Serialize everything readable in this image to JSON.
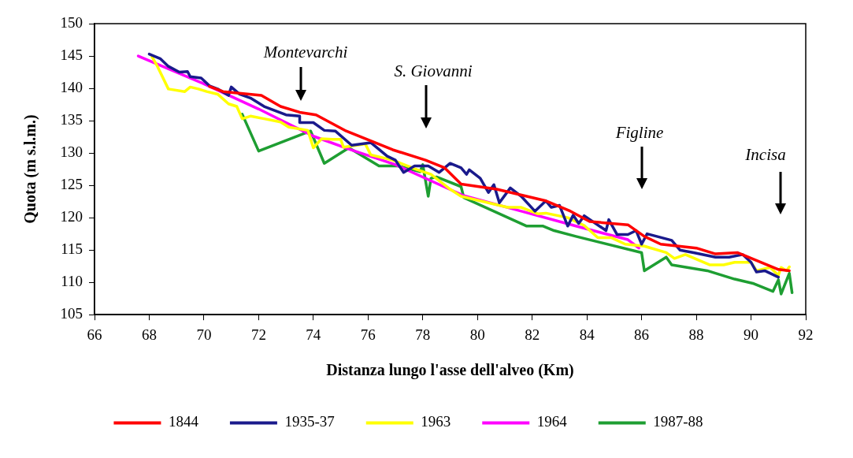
{
  "chart_data": {
    "type": "line",
    "xlabel": "Distanza lungo l'asse dell'alveo (Km)",
    "ylabel": "Quota (m s.l.m.)",
    "xlim": [
      66,
      92
    ],
    "xticks": [
      66,
      68,
      70,
      72,
      74,
      76,
      78,
      80,
      82,
      84,
      86,
      88,
      90,
      92
    ],
    "ylim": [
      105,
      150
    ],
    "yticks": [
      105,
      110,
      115,
      120,
      125,
      130,
      135,
      140,
      145,
      150
    ],
    "grid": false,
    "legend": "bottom",
    "marker": "none",
    "line_style": "solid",
    "annotations": [
      "Montevarchi",
      "S. Giovanni",
      "Figline",
      "Incisa"
    ],
    "series": [
      {
        "name": "1844",
        "color": "#ff0000",
        "x": [
          70.2,
          70.7,
          72.1,
          72.8,
          73.5,
          74.1,
          75.2,
          76.9,
          78.1,
          78.8,
          79.4,
          80.7,
          82.5,
          83.4,
          84.1,
          85.5,
          86.1,
          86.7,
          88.0,
          88.7,
          89.5,
          91.0,
          91.4
        ],
        "values": [
          140.3,
          139.5,
          138.9,
          137.2,
          136.3,
          135.9,
          133.4,
          130.5,
          128.9,
          127.7,
          125.2,
          124.4,
          122.6,
          121.0,
          119.4,
          118.9,
          117.1,
          115.9,
          115.3,
          114.4,
          114.6,
          112.0,
          111.8
        ]
      },
      {
        "name": "1935-37",
        "color": "#1a1a8c",
        "x": [
          68.0,
          68.4,
          68.7,
          69.1,
          69.4,
          69.5,
          69.9,
          70.2,
          70.5,
          70.9,
          71.0,
          71.3,
          71.7,
          72.2,
          73.0,
          73.5,
          73.5,
          74.0,
          74.4,
          74.8,
          75.4,
          76.1,
          76.7,
          77.0,
          77.3,
          77.7,
          78.2,
          78.6,
          79.0,
          79.4,
          79.6,
          79.7,
          80.1,
          80.4,
          80.6,
          80.8,
          81.2,
          81.6,
          82.1,
          82.5,
          82.7,
          83.0,
          83.3,
          83.5,
          83.7,
          83.9,
          84.7,
          84.8,
          85.1,
          85.5,
          85.8,
          86.0,
          86.2,
          87.1,
          87.4,
          87.9,
          88.7,
          89.2,
          89.7,
          90.0,
          90.2,
          90.5,
          91.0
        ],
        "values": [
          145.3,
          144.6,
          143.4,
          142.5,
          142.6,
          141.8,
          141.6,
          140.4,
          139.9,
          138.9,
          140.2,
          139.1,
          138.5,
          137.2,
          135.9,
          135.7,
          134.7,
          134.7,
          133.5,
          133.4,
          131.2,
          131.6,
          129.5,
          128.9,
          127.0,
          128.0,
          128.0,
          127.0,
          128.4,
          127.7,
          126.7,
          127.4,
          126.1,
          123.9,
          125.1,
          122.3,
          124.6,
          123.3,
          121.0,
          122.6,
          121.6,
          121.9,
          118.7,
          120.4,
          119.1,
          120.3,
          118.0,
          119.7,
          117.4,
          117.4,
          118.0,
          115.9,
          117.5,
          116.5,
          115.0,
          114.6,
          113.9,
          113.9,
          114.3,
          113.1,
          111.6,
          111.8,
          110.8
        ]
      },
      {
        "name": "1963",
        "color": "#ffff00",
        "x": [
          68.1,
          68.3,
          68.7,
          69.3,
          69.5,
          69.8,
          70.1,
          70.5,
          70.9,
          71.2,
          71.4,
          71.7,
          72.2,
          72.8,
          73.1,
          73.8,
          74.0,
          74.3,
          74.7,
          75.0,
          75.1,
          75.9,
          76.1,
          76.9,
          77.8,
          78.3,
          79.0,
          79.4,
          81.1,
          81.6,
          82.2,
          82.5,
          83.3,
          83.9,
          84.4,
          84.9,
          85.4,
          86.1,
          86.9,
          87.2,
          87.6,
          88.5,
          89.0,
          89.4,
          90.0,
          90.2,
          90.7,
          91.0,
          91.1,
          91.3,
          91.4
        ],
        "values": [
          144.9,
          143.4,
          139.9,
          139.5,
          140.2,
          139.9,
          139.5,
          139.1,
          137.6,
          137.2,
          135.3,
          135.7,
          135.3,
          134.8,
          134.0,
          133.5,
          130.8,
          132.2,
          132.1,
          132.1,
          130.9,
          131.4,
          129.7,
          128.9,
          127.4,
          126.7,
          124.4,
          123.3,
          121.6,
          121.6,
          120.6,
          120.7,
          120.0,
          118.8,
          116.9,
          116.9,
          115.9,
          115.6,
          114.6,
          113.7,
          114.3,
          112.7,
          112.7,
          113.1,
          113.1,
          111.8,
          112.3,
          111.1,
          112.3,
          111.8,
          112.4
        ]
      },
      {
        "name": "1964",
        "color": "#ff00ff",
        "x": [
          67.6,
          70.0,
          72.0,
          74.0,
          75.3,
          77.0,
          79.5,
          81.6,
          83.6,
          85.5,
          85.9
        ],
        "values": [
          145.0,
          140.7,
          136.8,
          132.6,
          130.6,
          128.2,
          123.4,
          121.0,
          118.7,
          116.6,
          115.3
        ]
      },
      {
        "name": "1987-88",
        "color": "#1e9e32",
        "x": [
          71.4,
          72.0,
          73.9,
          74.4,
          75.3,
          76.4,
          77.1,
          77.9,
          78.0,
          78.2,
          78.3,
          78.5,
          79.4,
          79.5,
          81.8,
          82.4,
          82.8,
          83.6,
          86.0,
          86.1,
          86.9,
          87.1,
          88.4,
          89.4,
          90.1,
          90.8,
          91.0,
          91.1,
          91.4,
          91.5
        ],
        "values": [
          136.0,
          130.3,
          133.4,
          128.4,
          130.8,
          128.0,
          128.0,
          127.1,
          128.2,
          123.3,
          126.1,
          126.3,
          124.8,
          123.1,
          118.7,
          118.7,
          118.0,
          117.1,
          114.6,
          111.8,
          113.9,
          112.7,
          111.8,
          110.5,
          109.8,
          108.6,
          110.4,
          108.2,
          111.4,
          108.4
        ]
      }
    ]
  }
}
